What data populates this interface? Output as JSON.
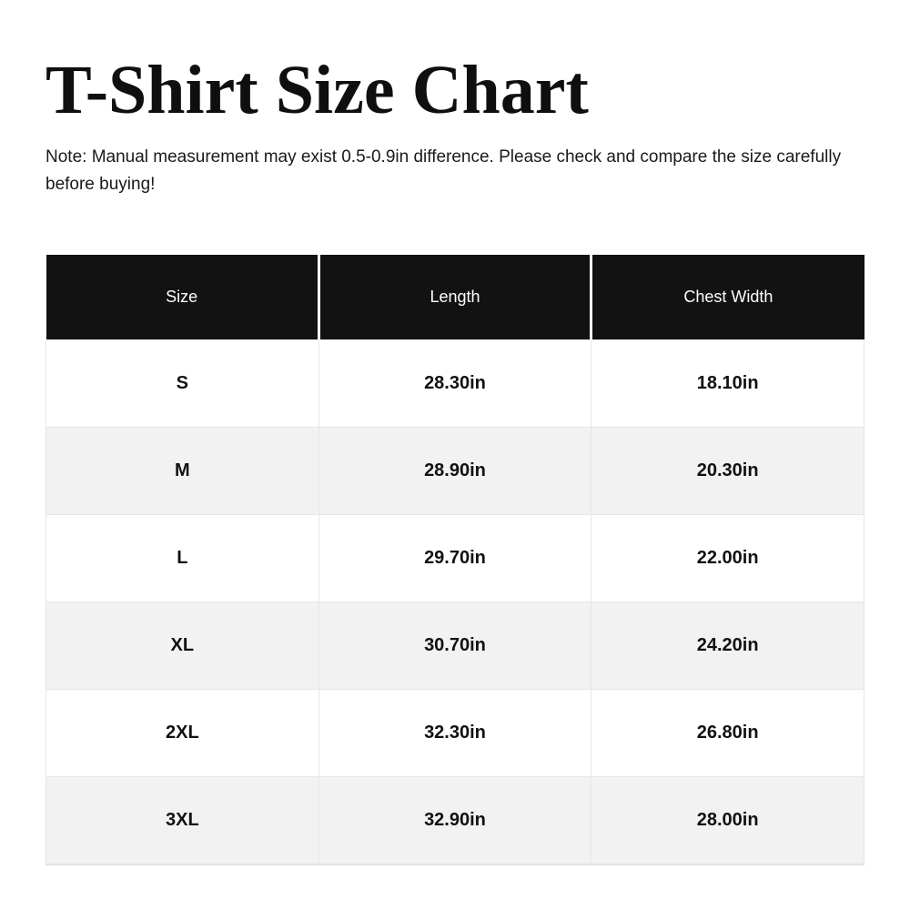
{
  "page": {
    "title": "T-Shirt Size Chart",
    "note": "Note: Manual measurement may exist 0.5-0.9in difference. Please check and compare the size carefully before buying!"
  },
  "table": {
    "columns": [
      "Size",
      "Length",
      "Chest Width"
    ],
    "rows": [
      {
        "size": "S",
        "length": "28.30in",
        "chest_width": "18.10in"
      },
      {
        "size": "M",
        "length": "28.90in",
        "chest_width": "20.30in"
      },
      {
        "size": "L",
        "length": "29.70in",
        "chest_width": "22.00in"
      },
      {
        "size": "XL",
        "length": "30.70in",
        "chest_width": "24.20in"
      },
      {
        "size": "2XL",
        "length": "32.30in",
        "chest_width": "26.80in"
      },
      {
        "size": "3XL",
        "length": "32.90in",
        "chest_width": "28.00in"
      }
    ]
  },
  "colors": {
    "header_background": "#121212",
    "header_text": "#ffffff",
    "row_alternate_background": "#f2f2f2",
    "row_background": "#ffffff",
    "cell_border": "#e6e6e6",
    "text": "#111111"
  }
}
